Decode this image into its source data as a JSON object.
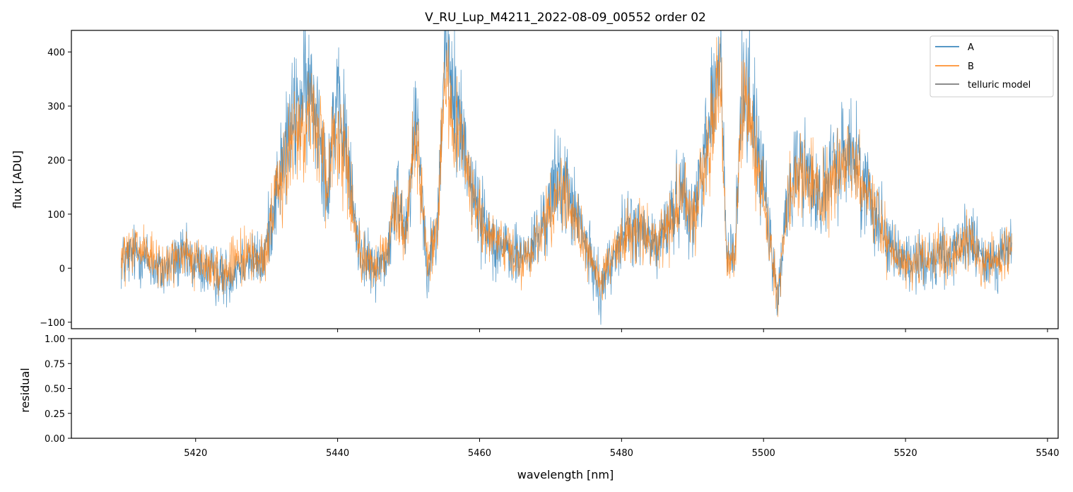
{
  "chart_data": [
    {
      "type": "line",
      "title": "V_RU_Lup_M4211_2022-08-09_00552  order 02",
      "xlabel": "",
      "ylabel": "flux [ADU]",
      "xlim": [
        5402.5,
        5541.5
      ],
      "ylim": [
        -112,
        440
      ],
      "x_ticks": [
        5420,
        5440,
        5460,
        5480,
        5500,
        5520,
        5540
      ],
      "y_ticks": [
        -100,
        0,
        100,
        200,
        300,
        400
      ],
      "y_tick_labels": [
        "−100",
        "0",
        "100",
        "200",
        "300",
        "400"
      ],
      "legend_position": "top-right",
      "series": [
        {
          "name": "A",
          "color": "#1f77b4",
          "x": [
            5409.5,
            5412,
            5415,
            5418,
            5421,
            5424,
            5427,
            5429.5,
            5431,
            5433,
            5434.5,
            5436,
            5437.5,
            5438.5,
            5439.5,
            5441,
            5442,
            5443,
            5445,
            5447,
            5448.5,
            5449.5,
            5450.5,
            5451.2,
            5452.5,
            5454,
            5455,
            5455.5,
            5456,
            5457,
            5458,
            5459.5,
            5461,
            5463,
            5465,
            5467,
            5469,
            5471,
            5472.5,
            5474,
            5475.5,
            5477,
            5479,
            5481,
            5483,
            5485,
            5486.5,
            5488,
            5489,
            5490,
            5491,
            5492,
            5493,
            5494,
            5494.8,
            5496,
            5497,
            5498,
            5499,
            5500,
            5501,
            5502,
            5503.5,
            5505,
            5506.5,
            5508,
            5510,
            5512,
            5513.5,
            5515,
            5517,
            5519,
            5521,
            5523,
            5525,
            5527,
            5529,
            5531,
            5533,
            5535
          ],
          "y": [
            10,
            30,
            -10,
            20,
            0,
            -20,
            20,
            10,
            120,
            240,
            300,
            330,
            280,
            140,
            290,
            250,
            130,
            40,
            -5,
            20,
            140,
            70,
            210,
            290,
            10,
            60,
            380,
            420,
            330,
            280,
            220,
            120,
            70,
            40,
            20,
            30,
            80,
            170,
            140,
            80,
            20,
            -40,
            30,
            80,
            60,
            40,
            80,
            130,
            150,
            80,
            170,
            240,
            320,
            380,
            20,
            30,
            350,
            330,
            240,
            150,
            40,
            -60,
            140,
            200,
            170,
            130,
            180,
            230,
            180,
            130,
            70,
            20,
            10,
            15,
            30,
            20,
            60,
            10,
            20,
            40
          ]
        },
        {
          "name": "B",
          "color": "#ff7f0e",
          "x": [
            5409.5,
            5412,
            5415,
            5418,
            5421,
            5424,
            5427,
            5429.5,
            5431,
            5433,
            5434.5,
            5436,
            5437.5,
            5438.5,
            5439.5,
            5441,
            5442,
            5443,
            5445,
            5447,
            5448.5,
            5449.5,
            5450.5,
            5451.2,
            5452.5,
            5454,
            5455,
            5455.5,
            5456,
            5457,
            5458,
            5459.5,
            5461,
            5463,
            5465,
            5467,
            5469,
            5471,
            5472.5,
            5474,
            5475.5,
            5477,
            5479,
            5481,
            5483,
            5485,
            5486.5,
            5488,
            5489,
            5490,
            5491,
            5492,
            5493,
            5494,
            5494.8,
            5496,
            5497,
            5498,
            5499,
            5500,
            5501,
            5502,
            5503.5,
            5505,
            5506.5,
            5508,
            5510,
            5512,
            5513.5,
            5515,
            5517,
            5519,
            5521,
            5523,
            5525,
            5527,
            5529,
            5531,
            5533,
            5535
          ],
          "y": [
            15,
            35,
            0,
            25,
            5,
            -10,
            25,
            15,
            110,
            210,
            260,
            280,
            250,
            130,
            260,
            220,
            120,
            35,
            0,
            25,
            130,
            60,
            190,
            260,
            15,
            50,
            330,
            360,
            290,
            250,
            200,
            110,
            65,
            35,
            20,
            30,
            75,
            150,
            125,
            75,
            20,
            -30,
            30,
            75,
            60,
            40,
            75,
            120,
            135,
            75,
            150,
            215,
            280,
            340,
            20,
            25,
            310,
            280,
            210,
            135,
            35,
            -50,
            125,
            180,
            160,
            125,
            170,
            215,
            165,
            120,
            60,
            20,
            10,
            15,
            30,
            20,
            55,
            10,
            20,
            45
          ]
        },
        {
          "name": "telluric model",
          "color": "#666666",
          "x": [],
          "y": []
        }
      ]
    },
    {
      "type": "line",
      "title": "",
      "xlabel": "wavelength [nm]",
      "ylabel": "residual",
      "xlim": [
        5402.5,
        5541.5
      ],
      "ylim": [
        0,
        1
      ],
      "x_ticks": [
        5420,
        5440,
        5460,
        5480,
        5500,
        5520,
        5540
      ],
      "y_ticks": [
        0.0,
        0.25,
        0.5,
        0.75,
        1.0
      ],
      "y_tick_labels": [
        "0.00",
        "0.25",
        "0.50",
        "0.75",
        "1.00"
      ],
      "series": []
    }
  ]
}
